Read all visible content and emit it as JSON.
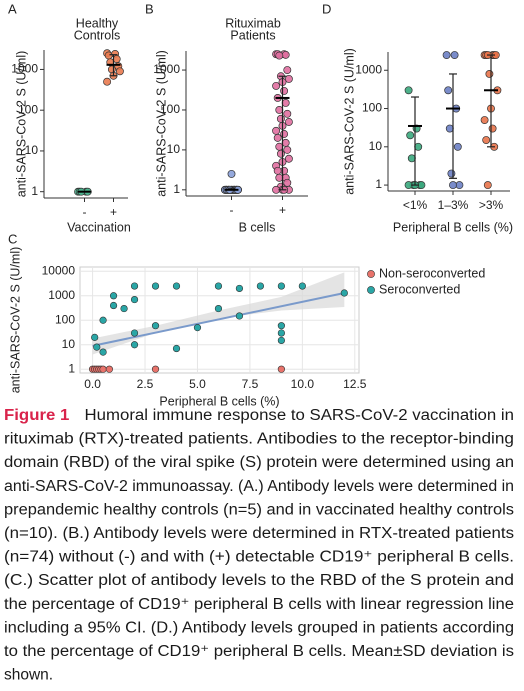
{
  "chart_data": [
    {
      "type": "strip",
      "panel": "A",
      "title": [
        "Healthy",
        "Controls"
      ],
      "ylabel": "anti-SARS-CoV-2 S (U/ml)",
      "xlabel": "Vaccination",
      "yscale": "log",
      "ylim": [
        0.7,
        3000
      ],
      "yticks": [
        1,
        10,
        100,
        1000
      ],
      "categories": [
        "-",
        "+"
      ],
      "colors": [
        "#4cb58f",
        "#e97a4f"
      ],
      "values": [
        [
          1,
          1,
          1,
          1,
          1
        ],
        [
          2500,
          2400,
          2200,
          1800,
          1500,
          1200,
          1000,
          900,
          700,
          500
        ]
      ],
      "mean": [
        1,
        1300
      ],
      "lower": [
        1,
        700
      ],
      "upper": [
        1,
        2300
      ]
    },
    {
      "type": "strip",
      "panel": "B",
      "title": [
        "Rituximab",
        "Patients"
      ],
      "ylabel": "anti-SARS-CoV-2 S (U/ml)",
      "xlabel": "B cells",
      "yscale": "log",
      "ylim": [
        0.7,
        3000
      ],
      "yticks": [
        1,
        10,
        100,
        1000
      ],
      "categories": [
        "-",
        "+"
      ],
      "colors": [
        "#8aa0d8",
        "#e06fa0"
      ],
      "values": [
        [
          1,
          1,
          1,
          1,
          1,
          1,
          1,
          1,
          1,
          1,
          1,
          1,
          1,
          1,
          1,
          1,
          1,
          1,
          1,
          1,
          1,
          1,
          1,
          1,
          1,
          1,
          1,
          1,
          1,
          1,
          1,
          1,
          1,
          1,
          1,
          2.5
        ],
        [
          2500,
          2500,
          2500,
          2400,
          2300,
          1000,
          700,
          600,
          500,
          400,
          300,
          200,
          150,
          100,
          80,
          60,
          50,
          40,
          30,
          25,
          20,
          15,
          12,
          10,
          8,
          6,
          5,
          4,
          3,
          3,
          2,
          2,
          1.5,
          1.2,
          1,
          1,
          1,
          1
        ]
      ],
      "mean": [
        1,
        200
      ],
      "lower": [
        1,
        1
      ],
      "upper": [
        1.1,
        700
      ]
    },
    {
      "type": "strip",
      "panel": "D",
      "ylabel": "anti-SARS-CoV-2 S (U/ml)",
      "xlabel": "Peripheral B cells (%)",
      "yscale": "log",
      "ylim": [
        0.7,
        3000
      ],
      "yticks": [
        1,
        10,
        100,
        1000
      ],
      "categories": [
        "<1%",
        "1–3%",
        ">3%"
      ],
      "colors": [
        "#3aa87d",
        "#6c80c4",
        "#e8734a"
      ],
      "values": [
        [
          300,
          30,
          20,
          10,
          5,
          1,
          1,
          1,
          1,
          1
        ],
        [
          2500,
          2500,
          300,
          100,
          30,
          10,
          2,
          1,
          1
        ],
        [
          2500,
          2500,
          2500,
          2500,
          2500,
          2500,
          800,
          300,
          100,
          50,
          30,
          15,
          10,
          1
        ]
      ],
      "mean": [
        35,
        100,
        300
      ],
      "lower": [
        1,
        1.5,
        10
      ],
      "upper": [
        200,
        800,
        2500
      ]
    },
    {
      "type": "scatter",
      "panel": "C",
      "ylabel": "anti-SARS-CoV-2 S (U/ml)",
      "xlabel": "Peripheral B cells (%)",
      "yscale": "log",
      "ylim": [
        0.7,
        15000
      ],
      "yticks": [
        1,
        10,
        100,
        1000,
        10000
      ],
      "xlim": [
        -0.6,
        12.7
      ],
      "xticks": [
        {
          "value": 0,
          "label": "0.0"
        },
        {
          "value": 2.5,
          "label": "2.5"
        },
        {
          "value": 5,
          "label": "5.0"
        },
        {
          "value": 7.5,
          "label": "7.5"
        },
        {
          "value": 10,
          "label": "10.0"
        },
        {
          "value": 12.5,
          "label": "12.5"
        }
      ],
      "grid": true,
      "legend": "right",
      "series": [
        {
          "name": "Non-seroconverted",
          "color": "#e8736b",
          "x": [
            0,
            0.1,
            0.2,
            0.3,
            0.4,
            0.5,
            0.8,
            3,
            9
          ],
          "values": [
            1,
            1,
            1,
            1,
            1,
            1,
            1,
            1,
            1
          ]
        },
        {
          "name": "Seroconverted",
          "color": "#2aa6a6",
          "x": [
            0.1,
            0.2,
            0.5,
            0.5,
            1,
            1,
            1.5,
            2,
            2,
            2,
            2,
            3,
            3,
            4,
            4,
            5,
            6,
            6,
            7,
            7,
            8,
            9,
            9,
            9,
            9,
            10,
            12
          ],
          "values": [
            20,
            8,
            5,
            100,
            1000,
            400,
            300,
            2500,
            700,
            30,
            10,
            60,
            2500,
            7,
            2500,
            50,
            2500,
            300,
            2000,
            150,
            2500,
            15,
            60,
            30,
            2500,
            2500,
            1300
          ]
        }
      ],
      "fit": {
        "color": "#7a9acb",
        "x": [
          0,
          12
        ],
        "values": [
          9,
          1300
        ]
      },
      "band": {
        "color": "#d9d9d9",
        "x": [
          0,
          3,
          6,
          9,
          12
        ],
        "lower": [
          4,
          30,
          120,
          250,
          350
        ],
        "upper": [
          18,
          60,
          250,
          900,
          9000
        ]
      }
    }
  ],
  "caption": {
    "label": "Figure 1",
    "lines": [
      "Humoral immune response to SARS-CoV-2 vaccination in",
      "rituximab (RTX)-treated patients. Antibodies to the receptor-binding",
      "domain (RBD) of the viral spike (S) protein were determined using an",
      "anti-SARS-CoV-2 immunoassay. (A.) Antibody levels were determined in",
      "prepandemic healthy controls (n=5) and in vaccinated healthy controls",
      "(n=10). (B.) Antibody levels were determined in RTX-treated patients",
      "(n=74) without (-) and with (+) detectable CD19⁺ peripheral B cells.",
      "(C.) Scatter plot of antibody levels to the RBD of the S protein and",
      "the percentage of CD19⁺ peripheral B cells with linear regression line",
      "including a 95% CI. (D.) Antibody levels grouped in patients according",
      "to the percentage of CD19⁺ peripheral B cells. Mean±SD deviation is",
      "shown."
    ]
  }
}
